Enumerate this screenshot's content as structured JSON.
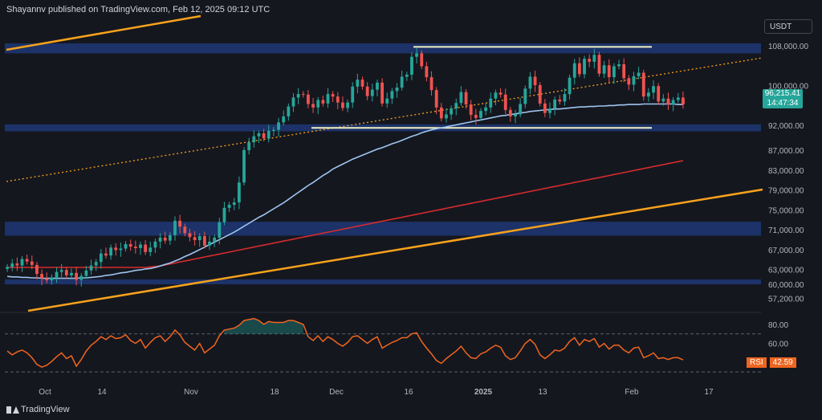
{
  "header": {
    "publisher": "Shayannv published on TradingView.com, Feb 12, 2025 09:12 UTC"
  },
  "unit": "USDT",
  "footer": {
    "brand": "TradingView"
  },
  "price_tag": {
    "price": "96,215.41",
    "countdown": "14:47:34"
  },
  "rsi_tag": {
    "label": "RSI",
    "value": "42.59"
  },
  "colors": {
    "background": "#15171f",
    "up": "#26a69a",
    "down": "#ef5350",
    "zone": "#1e3a7a",
    "trendline": "#f7a21b",
    "ma_fast": "#9ec5f0",
    "ma_slow": "#d72c2c",
    "range_lines": "#f2f0c0",
    "rsi": "#f0651f"
  },
  "chart_data": [
    {
      "type": "candlestick",
      "title": "",
      "xlabel": "",
      "ylabel": "",
      "y_ticks": [
        "108,000.00",
        "100,000.00",
        "92,000.00",
        "87,000.00",
        "83,000.00",
        "79,000.00",
        "75,000.00",
        "71,000.00",
        "67,000.00",
        "63,000.00",
        "60,000.00",
        "57,200.00"
      ],
      "x_ticks": [
        "Oct",
        "14",
        "Nov",
        "18",
        "Dec",
        "16",
        "2025",
        "13",
        "Feb",
        "17"
      ],
      "ylim": [
        55000,
        114000
      ],
      "support_resistance_zones": [
        [
          106500,
          108500
        ],
        [
          90800,
          92200
        ],
        [
          69800,
          72600
        ],
        [
          60000,
          61000
        ]
      ],
      "range_lines": [
        107800,
        91500
      ],
      "close": [
        63500,
        64200,
        63800,
        65100,
        64600,
        63900,
        62100,
        61200,
        60800,
        61400,
        62500,
        62900,
        61800,
        62300,
        60900,
        61700,
        62800,
        63800,
        64500,
        66200,
        65800,
        67400,
        66900,
        67200,
        68100,
        67600,
        67300,
        68000,
        66500,
        67400,
        68600,
        69400,
        68800,
        69900,
        72800,
        71600,
        70300,
        69500,
        68900,
        69700,
        67800,
        68600,
        69400,
        72500,
        75400,
        76000,
        76500,
        80500,
        87000,
        88600,
        89800,
        90400,
        89400,
        90900,
        91100,
        92600,
        93800,
        95800,
        97600,
        98300,
        98200,
        96300,
        95600,
        97100,
        96400,
        98300,
        97800,
        96600,
        95500,
        96600,
        99800,
        101200,
        99800,
        97900,
        99200,
        100600,
        96400,
        97400,
        98900,
        99600,
        101800,
        102200,
        105800,
        106500,
        103900,
        101700,
        99100,
        95600,
        93400,
        94200,
        95400,
        96500,
        98700,
        96200,
        94100,
        93500,
        94900,
        95600,
        97400,
        98600,
        98200,
        95100,
        93800,
        94200,
        96300,
        99400,
        101800,
        100100,
        96400,
        94500,
        95400,
        97200,
        96800,
        98300,
        101600,
        104500,
        102300,
        105400,
        104800,
        106200,
        102400,
        104100,
        101700,
        103900,
        104300,
        101500,
        100200,
        101900,
        102600,
        97800,
        98600,
        99900,
        96800,
        97400,
        96200,
        97100,
        97600,
        96215
      ],
      "ma_fast": [
        61600,
        61500,
        61500,
        61400,
        61400,
        61300,
        61300,
        61200,
        61200,
        61200,
        61200,
        61200,
        61200,
        61200,
        61200,
        61300,
        61300,
        61400,
        61500,
        61600,
        61800,
        61900,
        62100,
        62300,
        62400,
        62600,
        62800,
        62900,
        63100,
        63200,
        63400,
        63700,
        64000,
        64300,
        64700,
        65100,
        65600,
        66000,
        66500,
        67000,
        67500,
        68000,
        68500,
        69000,
        69500,
        70000,
        70500,
        71100,
        71700,
        72300,
        72900,
        73500,
        74000,
        74600,
        75200,
        75800,
        76400,
        77100,
        77800,
        78500,
        79200,
        79900,
        80500,
        81200,
        81900,
        82500,
        83200,
        83700,
        84200,
        84700,
        85200,
        85600,
        86000,
        86400,
        86800,
        87200,
        87500,
        87900,
        88300,
        88600,
        89000,
        89400,
        89800,
        90100,
        90500,
        90800,
        91100,
        91300,
        91500,
        91700,
        91900,
        92100,
        92300,
        92500,
        92700,
        92900,
        93100,
        93300,
        93500,
        93700,
        93900,
        94000,
        94200,
        94300,
        94500,
        94600,
        94800,
        94900,
        95000,
        95100,
        95200,
        95300,
        95300,
        95400,
        95500,
        95600,
        95700,
        95700,
        95800,
        95800,
        95900,
        95900,
        96000,
        96000,
        96100,
        96100,
        96200,
        96200,
        96200,
        96300,
        96300,
        96300,
        96300,
        96300,
        96300,
        96300,
        96200,
        96200
      ],
      "ma_slow": [
        63400,
        63400,
        63400,
        63400,
        63400,
        63400,
        63400,
        63400,
        63400,
        63400,
        63400,
        63400,
        63400,
        63400,
        63400,
        63400,
        63400,
        63400,
        63400,
        63400,
        63400,
        63400,
        63400,
        63400,
        63400,
        63400,
        63400,
        63400,
        63400,
        63500,
        63600,
        63700,
        63900,
        64100,
        64300,
        64500,
        64700,
        64900,
        65100,
        65300,
        65500,
        65700,
        65900,
        66100,
        66300,
        66500,
        66700,
        66900,
        67100,
        67300,
        67500,
        67700,
        67900,
        68100,
        68300,
        68500,
        68700,
        68900,
        69100,
        69300,
        69500,
        69700,
        69900,
        70100,
        70300,
        70500,
        70700,
        70900,
        71100,
        71300,
        71500,
        71700,
        71900,
        72100,
        72300,
        72500,
        72700,
        72900,
        73100,
        73300,
        73500,
        73700,
        73900,
        74100,
        74300,
        74500,
        74700,
        74900,
        75100,
        75300,
        75500,
        75700,
        75900,
        76100,
        76300,
        76500,
        76700,
        76900,
        77100,
        77300,
        77500,
        77700,
        77900,
        78100,
        78300,
        78500,
        78700,
        78900,
        79100,
        79300,
        79500,
        79700,
        79900,
        80100,
        80300,
        80500,
        80700,
        80900,
        81100,
        81300,
        81500,
        81700,
        81900,
        82100,
        82300,
        82500,
        82700,
        82900,
        83100,
        83300,
        83500,
        83700,
        83900,
        84100,
        84300,
        84500,
        84700,
        84900
      ]
    },
    {
      "type": "line",
      "title": "",
      "series": [
        {
          "name": "RSI",
          "values": [
            52,
            48,
            51,
            53,
            50,
            45,
            38,
            35,
            37,
            41,
            46,
            50,
            44,
            47,
            36,
            43,
            52,
            58,
            62,
            67,
            64,
            68,
            65,
            66,
            69,
            63,
            60,
            64,
            55,
            61,
            66,
            68,
            62,
            67,
            74,
            69,
            61,
            57,
            53,
            60,
            50,
            54,
            58,
            68,
            74,
            75,
            76,
            79,
            84,
            85,
            86,
            84,
            80,
            83,
            82,
            82,
            82,
            84,
            84,
            82,
            80,
            67,
            63,
            68,
            62,
            67,
            64,
            60,
            57,
            61,
            67,
            68,
            64,
            60,
            64,
            67,
            55,
            58,
            61,
            63,
            66,
            66,
            70,
            71,
            62,
            55,
            49,
            42,
            39,
            44,
            48,
            52,
            57,
            50,
            45,
            44,
            49,
            51,
            55,
            58,
            56,
            47,
            43,
            45,
            52,
            60,
            64,
            59,
            48,
            44,
            48,
            53,
            52,
            55,
            62,
            66,
            58,
            64,
            62,
            65,
            56,
            60,
            54,
            58,
            58,
            53,
            50,
            55,
            56,
            45,
            47,
            50,
            44,
            45,
            43,
            45,
            45,
            42.59
          ]
        }
      ],
      "ylim": [
        20,
        90
      ],
      "levels": [
        70,
        30
      ],
      "y_ticks": [
        "80.00",
        "60.00"
      ]
    }
  ]
}
